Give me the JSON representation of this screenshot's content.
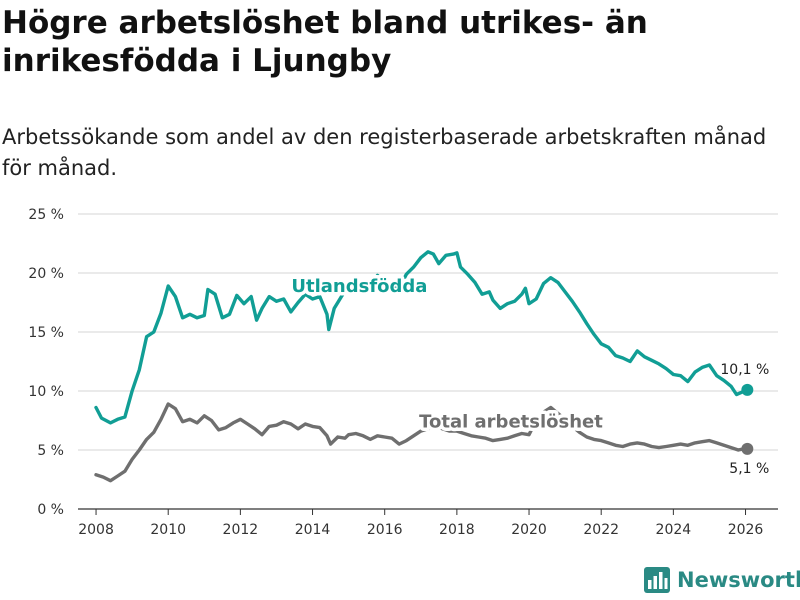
{
  "header": {
    "title": "Högre arbetslöshet bland utrikes- än inrikesfödda i Ljungby",
    "subtitle": "Arbetssökande som andel av den registerbaserade arbetskraften månad för månad."
  },
  "brand": {
    "name": "Newsworthy",
    "color": "#2a8a84"
  },
  "chart_data": {
    "type": "line",
    "title": "Högre arbetslöshet bland utrikes- än inrikesfödda i Ljungby",
    "subtitle": "Arbetssökande som andel av den registerbaserade arbetskraften månad för månad.",
    "xlabel": "",
    "ylabel": "",
    "xlim": [
      2007.5,
      2026.9
    ],
    "ylim": [
      0,
      25
    ],
    "x_ticks": [
      2008,
      2010,
      2012,
      2014,
      2016,
      2018,
      2020,
      2022,
      2024,
      2026
    ],
    "y_ticks": [
      0,
      5,
      10,
      15,
      20,
      25
    ],
    "y_tick_labels": [
      "0 %",
      "5 %",
      "10 %",
      "15 %",
      "20 %",
      "25 %"
    ],
    "grid": true,
    "series": [
      {
        "name": "Utlandsfödda",
        "color": "#119e95",
        "end_label": "10,1 %",
        "points": [
          [
            2008.0,
            8.6
          ],
          [
            2008.15,
            7.7
          ],
          [
            2008.4,
            7.3
          ],
          [
            2008.6,
            7.6
          ],
          [
            2008.8,
            7.8
          ],
          [
            2009.0,
            10.0
          ],
          [
            2009.2,
            11.8
          ],
          [
            2009.4,
            14.6
          ],
          [
            2009.6,
            15.0
          ],
          [
            2009.8,
            16.6
          ],
          [
            2010.0,
            18.9
          ],
          [
            2010.2,
            18.0
          ],
          [
            2010.4,
            16.2
          ],
          [
            2010.6,
            16.5
          ],
          [
            2010.8,
            16.2
          ],
          [
            2011.0,
            16.4
          ],
          [
            2011.1,
            18.6
          ],
          [
            2011.3,
            18.2
          ],
          [
            2011.5,
            16.2
          ],
          [
            2011.7,
            16.5
          ],
          [
            2011.9,
            18.1
          ],
          [
            2012.1,
            17.4
          ],
          [
            2012.3,
            18.0
          ],
          [
            2012.45,
            16.0
          ],
          [
            2012.6,
            17.0
          ],
          [
            2012.8,
            18.0
          ],
          [
            2013.0,
            17.6
          ],
          [
            2013.2,
            17.8
          ],
          [
            2013.4,
            16.7
          ],
          [
            2013.6,
            17.5
          ],
          [
            2013.8,
            18.2
          ],
          [
            2014.0,
            17.8
          ],
          [
            2014.2,
            18.0
          ],
          [
            2014.4,
            16.5
          ],
          [
            2014.45,
            15.2
          ],
          [
            2014.6,
            17.0
          ],
          [
            2014.8,
            18.0
          ],
          [
            2015.0,
            18.9
          ],
          [
            2015.2,
            19.5
          ],
          [
            2015.4,
            19.2
          ],
          [
            2015.6,
            19.0
          ],
          [
            2015.8,
            19.8
          ],
          [
            2016.0,
            19.4
          ],
          [
            2016.2,
            19.1
          ],
          [
            2016.4,
            18.7
          ],
          [
            2016.6,
            19.9
          ],
          [
            2016.8,
            20.5
          ],
          [
            2017.0,
            21.3
          ],
          [
            2017.2,
            21.8
          ],
          [
            2017.35,
            21.6
          ],
          [
            2017.5,
            20.8
          ],
          [
            2017.7,
            21.5
          ],
          [
            2017.9,
            21.6
          ],
          [
            2018.0,
            21.7
          ],
          [
            2018.1,
            20.5
          ],
          [
            2018.3,
            19.9
          ],
          [
            2018.5,
            19.2
          ],
          [
            2018.7,
            18.2
          ],
          [
            2018.9,
            18.4
          ],
          [
            2019.0,
            17.7
          ],
          [
            2019.2,
            17.0
          ],
          [
            2019.4,
            17.4
          ],
          [
            2019.6,
            17.6
          ],
          [
            2019.8,
            18.2
          ],
          [
            2019.9,
            18.7
          ],
          [
            2020.0,
            17.4
          ],
          [
            2020.2,
            17.8
          ],
          [
            2020.4,
            19.1
          ],
          [
            2020.6,
            19.6
          ],
          [
            2020.8,
            19.2
          ],
          [
            2021.0,
            18.4
          ],
          [
            2021.2,
            17.6
          ],
          [
            2021.4,
            16.7
          ],
          [
            2021.6,
            15.7
          ],
          [
            2021.8,
            14.8
          ],
          [
            2022.0,
            14.0
          ],
          [
            2022.2,
            13.7
          ],
          [
            2022.4,
            13.0
          ],
          [
            2022.6,
            12.8
          ],
          [
            2022.8,
            12.5
          ],
          [
            2023.0,
            13.4
          ],
          [
            2023.2,
            12.9
          ],
          [
            2023.4,
            12.6
          ],
          [
            2023.6,
            12.3
          ],
          [
            2023.8,
            11.9
          ],
          [
            2024.0,
            11.4
          ],
          [
            2024.2,
            11.3
          ],
          [
            2024.4,
            10.8
          ],
          [
            2024.6,
            11.6
          ],
          [
            2024.8,
            12.0
          ],
          [
            2025.0,
            12.2
          ],
          [
            2025.2,
            11.3
          ],
          [
            2025.4,
            10.9
          ],
          [
            2025.6,
            10.4
          ],
          [
            2025.75,
            9.7
          ],
          [
            2025.9,
            9.9
          ],
          [
            2026.05,
            10.1
          ]
        ]
      },
      {
        "name": "Total arbetslöshet",
        "color": "#6f6f6f",
        "end_label": "5,1 %",
        "points": [
          [
            2008.0,
            2.9
          ],
          [
            2008.2,
            2.7
          ],
          [
            2008.4,
            2.4
          ],
          [
            2008.6,
            2.8
          ],
          [
            2008.8,
            3.2
          ],
          [
            2009.0,
            4.2
          ],
          [
            2009.2,
            5.0
          ],
          [
            2009.4,
            5.9
          ],
          [
            2009.6,
            6.5
          ],
          [
            2009.8,
            7.6
          ],
          [
            2010.0,
            8.9
          ],
          [
            2010.2,
            8.5
          ],
          [
            2010.4,
            7.4
          ],
          [
            2010.6,
            7.6
          ],
          [
            2010.8,
            7.3
          ],
          [
            2011.0,
            7.9
          ],
          [
            2011.2,
            7.5
          ],
          [
            2011.4,
            6.7
          ],
          [
            2011.6,
            6.9
          ],
          [
            2011.8,
            7.3
          ],
          [
            2012.0,
            7.6
          ],
          [
            2012.2,
            7.2
          ],
          [
            2012.4,
            6.8
          ],
          [
            2012.6,
            6.3
          ],
          [
            2012.8,
            7.0
          ],
          [
            2013.0,
            7.1
          ],
          [
            2013.2,
            7.4
          ],
          [
            2013.4,
            7.2
          ],
          [
            2013.6,
            6.8
          ],
          [
            2013.8,
            7.2
          ],
          [
            2014.0,
            7.0
          ],
          [
            2014.2,
            6.9
          ],
          [
            2014.4,
            6.2
          ],
          [
            2014.5,
            5.5
          ],
          [
            2014.7,
            6.1
          ],
          [
            2014.9,
            6.0
          ],
          [
            2015.0,
            6.3
          ],
          [
            2015.2,
            6.4
          ],
          [
            2015.4,
            6.2
          ],
          [
            2015.6,
            5.9
          ],
          [
            2015.8,
            6.2
          ],
          [
            2016.0,
            6.1
          ],
          [
            2016.2,
            6.0
          ],
          [
            2016.4,
            5.5
          ],
          [
            2016.6,
            5.8
          ],
          [
            2016.8,
            6.2
          ],
          [
            2017.0,
            6.6
          ],
          [
            2017.2,
            6.8
          ],
          [
            2017.4,
            7.0
          ],
          [
            2017.6,
            6.8
          ],
          [
            2017.8,
            6.6
          ],
          [
            2018.0,
            6.6
          ],
          [
            2018.2,
            6.4
          ],
          [
            2018.4,
            6.2
          ],
          [
            2018.6,
            6.1
          ],
          [
            2018.8,
            6.0
          ],
          [
            2019.0,
            5.8
          ],
          [
            2019.2,
            5.9
          ],
          [
            2019.4,
            6.0
          ],
          [
            2019.6,
            6.2
          ],
          [
            2019.8,
            6.4
          ],
          [
            2020.0,
            6.3
          ],
          [
            2020.2,
            7.5
          ],
          [
            2020.4,
            8.2
          ],
          [
            2020.6,
            8.6
          ],
          [
            2020.8,
            8.1
          ],
          [
            2021.0,
            7.6
          ],
          [
            2021.2,
            7.0
          ],
          [
            2021.4,
            6.5
          ],
          [
            2021.6,
            6.1
          ],
          [
            2021.8,
            5.9
          ],
          [
            2022.0,
            5.8
          ],
          [
            2022.2,
            5.6
          ],
          [
            2022.4,
            5.4
          ],
          [
            2022.6,
            5.3
          ],
          [
            2022.8,
            5.5
          ],
          [
            2023.0,
            5.6
          ],
          [
            2023.2,
            5.5
          ],
          [
            2023.4,
            5.3
          ],
          [
            2023.6,
            5.2
          ],
          [
            2023.8,
            5.3
          ],
          [
            2024.0,
            5.4
          ],
          [
            2024.2,
            5.5
          ],
          [
            2024.4,
            5.4
          ],
          [
            2024.6,
            5.6
          ],
          [
            2024.8,
            5.7
          ],
          [
            2025.0,
            5.8
          ],
          [
            2025.2,
            5.6
          ],
          [
            2025.4,
            5.4
          ],
          [
            2025.6,
            5.2
          ],
          [
            2025.8,
            5.0
          ],
          [
            2025.95,
            5.1
          ],
          [
            2026.05,
            5.1
          ]
        ]
      }
    ],
    "annotations": [
      {
        "text": "Utlandsfödda",
        "series": 0,
        "x": 2015.3,
        "y": 18.4
      },
      {
        "text": "Total arbetslöshet",
        "series": 1,
        "x": 2019.5,
        "y": 6.9
      }
    ]
  }
}
